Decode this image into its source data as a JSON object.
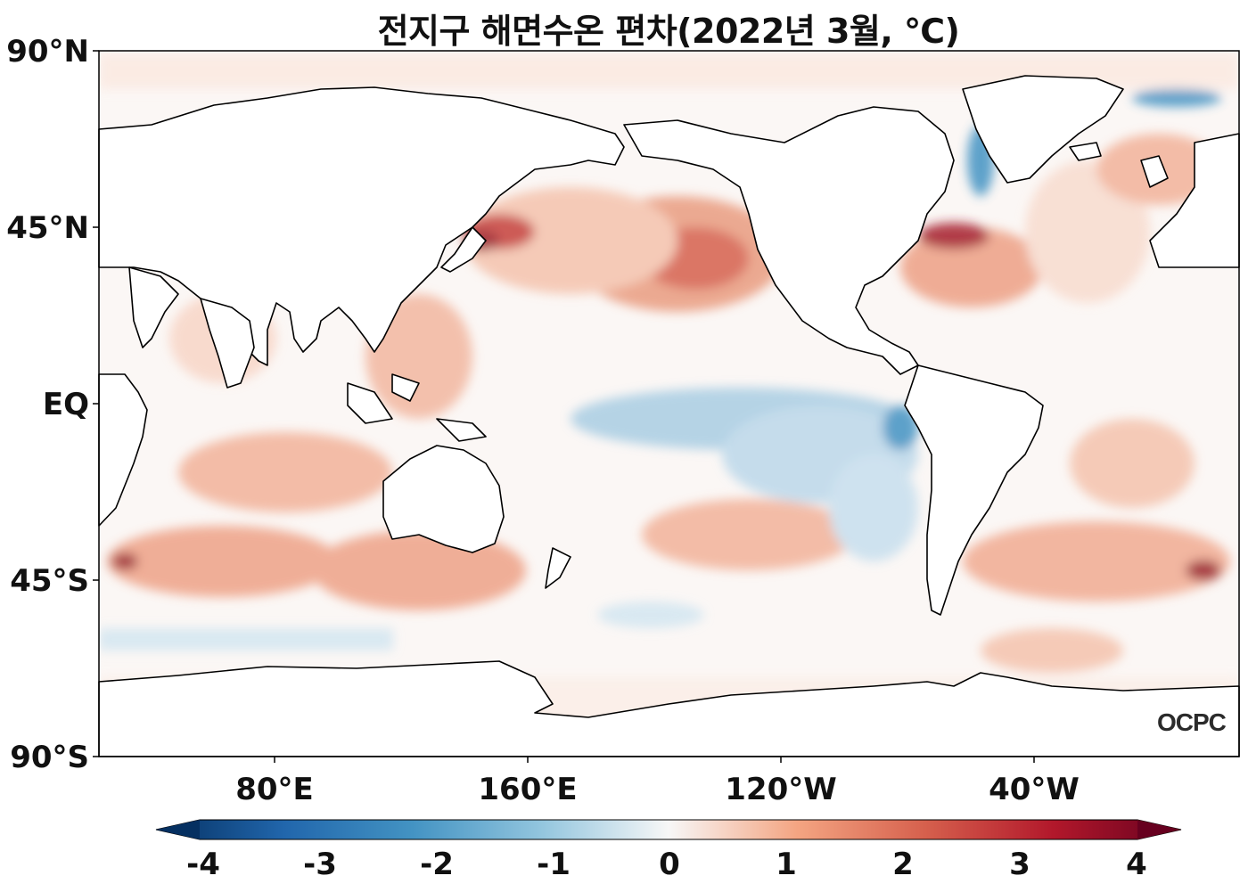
{
  "title": "전지구 해면수온 편차(2022년 3월, ℃)",
  "y_axis": {
    "labels": [
      "90°N",
      "45°N",
      "EQ",
      "45°S",
      "90°S"
    ]
  },
  "x_axis": {
    "labels": [
      "80°E",
      "160°E",
      "120°W",
      "40°W"
    ]
  },
  "colorbar": {
    "ticks": [
      "-4",
      "-3",
      "-2",
      "-1",
      "0",
      "1",
      "2",
      "3",
      "4"
    ],
    "range": [
      -4,
      4
    ],
    "colors": [
      "#053061",
      "#2166ac",
      "#4393c3",
      "#92c5de",
      "#f7f7f7",
      "#f4a582",
      "#d6604d",
      "#b2182b",
      "#67001f"
    ]
  },
  "logo": "OCPC",
  "colors": {
    "warm": "#d6604d",
    "cool": "#4393c3",
    "land": "#ffffff",
    "coast": "#000000"
  }
}
